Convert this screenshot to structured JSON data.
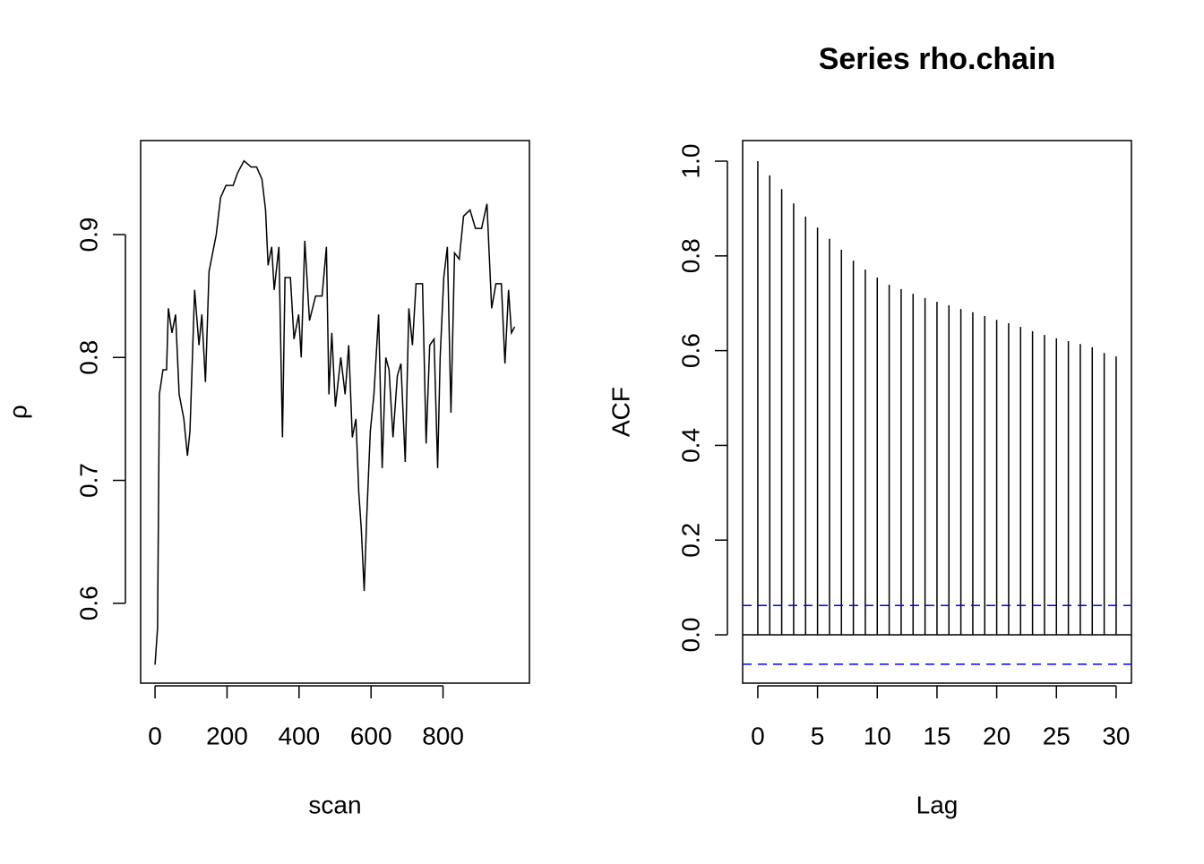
{
  "chart_data": [
    {
      "type": "line",
      "xlabel": "scan",
      "ylabel": "ρ",
      "color": "#000000",
      "x": [
        0,
        7,
        12,
        22,
        32,
        37,
        47,
        57,
        67,
        80,
        90,
        97,
        110,
        122,
        130,
        140,
        150,
        160,
        170,
        182,
        197,
        217,
        229,
        247,
        267,
        282,
        297,
        307,
        314,
        324,
        331,
        344,
        354,
        361,
        376,
        386,
        399,
        406,
        416,
        429,
        446,
        464,
        476,
        483,
        491,
        501,
        516,
        528,
        538,
        548,
        558,
        566,
        573,
        581,
        588,
        598,
        608,
        621,
        631,
        641,
        650,
        661,
        673,
        683,
        695,
        705,
        715,
        725,
        743,
        753,
        763,
        775,
        785,
        792,
        802,
        812,
        822,
        832,
        845,
        857,
        875,
        890,
        907,
        922,
        935,
        947,
        962,
        972,
        982,
        990,
        999
      ],
      "values": [
        0.55,
        0.58,
        0.77,
        0.79,
        0.79,
        0.84,
        0.82,
        0.835,
        0.77,
        0.75,
        0.72,
        0.74,
        0.855,
        0.81,
        0.835,
        0.78,
        0.87,
        0.885,
        0.9,
        0.93,
        0.94,
        0.94,
        0.95,
        0.96,
        0.955,
        0.955,
        0.945,
        0.92,
        0.875,
        0.89,
        0.855,
        0.89,
        0.735,
        0.865,
        0.865,
        0.815,
        0.835,
        0.8,
        0.895,
        0.83,
        0.85,
        0.85,
        0.89,
        0.77,
        0.82,
        0.76,
        0.8,
        0.77,
        0.81,
        0.735,
        0.75,
        0.69,
        0.66,
        0.61,
        0.67,
        0.74,
        0.77,
        0.835,
        0.71,
        0.8,
        0.79,
        0.735,
        0.785,
        0.795,
        0.715,
        0.84,
        0.81,
        0.86,
        0.86,
        0.73,
        0.81,
        0.815,
        0.71,
        0.8,
        0.865,
        0.89,
        0.755,
        0.885,
        0.88,
        0.915,
        0.92,
        0.905,
        0.905,
        0.925,
        0.84,
        0.86,
        0.86,
        0.795,
        0.855,
        0.82,
        0.825
      ],
      "xlim": [
        -40,
        1040
      ],
      "xticks": [
        0,
        200,
        400,
        600,
        800
      ],
      "ylim": [
        0.535,
        0.9765
      ],
      "yticks": [
        0.6,
        0.7,
        0.8,
        0.9
      ]
    },
    {
      "type": "stem",
      "title": "Series  rho.chain",
      "xlabel": "Lag",
      "ylabel": "ACF",
      "color": "#000000",
      "x": [
        0,
        1,
        2,
        3,
        4,
        5,
        6,
        7,
        8,
        9,
        10,
        11,
        12,
        13,
        14,
        15,
        16,
        17,
        18,
        19,
        20,
        21,
        22,
        23,
        24,
        25,
        26,
        27,
        28,
        29,
        30
      ],
      "values": [
        1.0,
        0.97,
        0.941,
        0.911,
        0.883,
        0.86,
        0.836,
        0.813,
        0.79,
        0.771,
        0.754,
        0.739,
        0.73,
        0.72,
        0.711,
        0.703,
        0.696,
        0.688,
        0.681,
        0.673,
        0.665,
        0.658,
        0.65,
        0.641,
        0.633,
        0.626,
        0.62,
        0.614,
        0.607,
        0.595,
        0.588
      ],
      "ci": [
        0.062,
        -0.062
      ],
      "ci_color": "#0000ff",
      "xlim": [
        -1.27,
        31.28
      ],
      "xticks": [
        0,
        5,
        10,
        15,
        20,
        25,
        30
      ],
      "ylim": [
        -0.102,
        1.0435
      ],
      "yticks": [
        {
          "value": 0,
          "label": "0.0"
        },
        0.2,
        0.4,
        0.6,
        0.8,
        {
          "value": 1,
          "label": "1.0"
        }
      ]
    }
  ]
}
